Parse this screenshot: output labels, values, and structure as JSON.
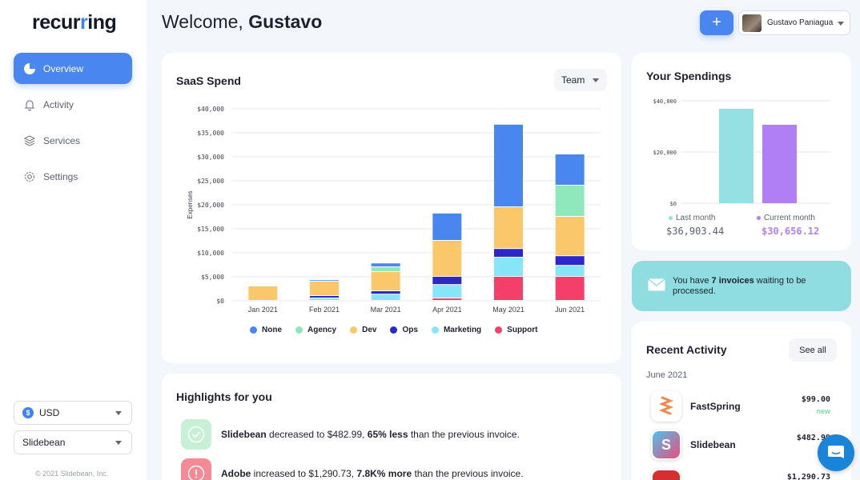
{
  "brand": {
    "logo_text_a": "recur",
    "logo_text_b": "r",
    "logo_text_c": "ing"
  },
  "sidebar": {
    "items": [
      {
        "label": "Overview",
        "icon": "pie-chart-icon",
        "active": true
      },
      {
        "label": "Activity",
        "icon": "bell-icon",
        "active": false
      },
      {
        "label": "Services",
        "icon": "layers-icon",
        "active": false
      },
      {
        "label": "Settings",
        "icon": "gear-icon",
        "active": false
      }
    ],
    "currency": {
      "symbol": "$",
      "value": "USD"
    },
    "company": "Slidebean",
    "copyright": "© 2021 Slidebean, Inc."
  },
  "header": {
    "welcome_prefix": "Welcome, ",
    "user_first_name": "Gustavo",
    "plus_label": "+",
    "user_name": "Gustavo Paniagua"
  },
  "saas_spend": {
    "title": "SaaS Spend",
    "filter_value": "Team",
    "chart_data": {
      "type": "bar",
      "stacked": true,
      "ylabel": "Expenses",
      "ylim": [
        0,
        40000
      ],
      "yticks": [
        "$0",
        "$5,000",
        "$10,000",
        "$15,000",
        "$20,000",
        "$25,000",
        "$30,000",
        "$35,000",
        "$40,000"
      ],
      "categories": [
        "Jan 2021",
        "Feb 2021",
        "Mar 2021",
        "Apr 2021",
        "May 2021",
        "Jun 2021"
      ],
      "series": [
        {
          "name": "Support",
          "color": "#f43f6b",
          "values": [
            0,
            0,
            0,
            500,
            5000,
            5000
          ]
        },
        {
          "name": "Marketing",
          "color": "#86e5f7",
          "values": [
            0,
            500,
            1300,
            2800,
            4000,
            2300
          ]
        },
        {
          "name": "Ops",
          "color": "#2b27c9",
          "values": [
            0,
            500,
            700,
            1700,
            1800,
            2000
          ]
        },
        {
          "name": "Dev",
          "color": "#fac86b",
          "values": [
            3000,
            3000,
            4000,
            7500,
            8700,
            8200
          ]
        },
        {
          "name": "Agency",
          "color": "#8fe8bc",
          "values": [
            0,
            0,
            1000,
            0,
            0,
            6500
          ]
        },
        {
          "name": "None",
          "color": "#4a86f0",
          "values": [
            0,
            300,
            800,
            5700,
            17200,
            6500
          ]
        }
      ],
      "legend_order": [
        "None",
        "Agency",
        "Dev",
        "Ops",
        "Marketing",
        "Support"
      ],
      "legend_position": "bottom"
    }
  },
  "spendings": {
    "title": "Your Spendings",
    "chart_data": {
      "type": "bar",
      "yticks": [
        "$0",
        "$20,000",
        "$40,000"
      ],
      "ylim": [
        0,
        40000
      ],
      "categories": [
        "Last month",
        "Current month"
      ],
      "values": [
        36903.44,
        30656.12
      ],
      "colors": [
        "#94e0e2",
        "#b07ef5"
      ]
    },
    "last_month_label": "Last month",
    "current_month_label": "Current month",
    "last_month_value": "$36,903.44",
    "current_month_value": "$30,656.12"
  },
  "invoices": {
    "prefix": "You have ",
    "count_text": "7 invoices",
    "suffix": " waiting to be processed."
  },
  "recent_activity": {
    "title": "Recent Activity",
    "see_all": "See all",
    "month": "June 2021",
    "items": [
      {
        "name": "FastSpring",
        "amount": "$99.00",
        "status": "new"
      },
      {
        "name": "Slidebean",
        "amount": "$482.99",
        "status": ""
      },
      {
        "name": "",
        "amount": "$1,290.73",
        "status": ""
      }
    ]
  },
  "highlights": {
    "title": "Highlights for you",
    "items": [
      {
        "company": "Slidebean",
        "text_a": " decreased to $482.99, ",
        "emph": "65% less",
        "text_b": " than the previous invoice.",
        "color": "#7ddc9f"
      },
      {
        "company": "Adobe",
        "text_a": " increased to $1,290.73, ",
        "emph": "7.8K% more",
        "text_b": " than the previous invoice.",
        "color": "#f26e7f"
      }
    ]
  }
}
